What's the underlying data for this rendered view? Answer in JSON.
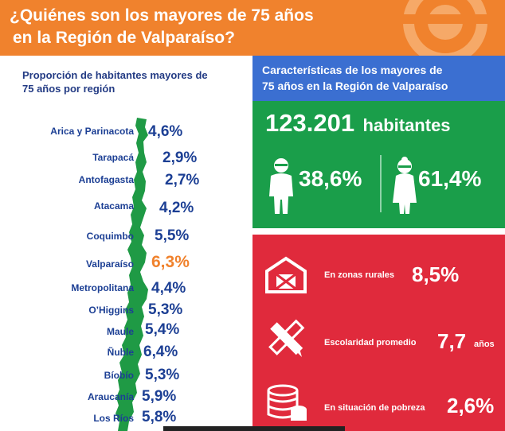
{
  "header": {
    "title_line1": "¿Quiénes son los mayores de 75 años",
    "title_line2": "en la Región de Valparaíso?"
  },
  "left": {
    "title_line1": "Proporción de habitantes mayores de",
    "title_line2": "75 años por región",
    "regions": [
      {
        "name": "Arica y Parinacota",
        "pct": "4,6%"
      },
      {
        "name": "Tarapacá",
        "pct": "2,9%"
      },
      {
        "name": "Antofagasta",
        "pct": "2,7%"
      },
      {
        "name": "Atacama",
        "pct": "4,2%"
      },
      {
        "name": "Coquimbo",
        "pct": "5,5%"
      },
      {
        "name": "Valparaíso",
        "pct": "6,3%"
      },
      {
        "name": "Metropolitana",
        "pct": "4,4%"
      },
      {
        "name": "O’Higgins",
        "pct": "5,3%"
      },
      {
        "name": "Maule",
        "pct": "5,4%"
      },
      {
        "name": "Ñuble",
        "pct": "6,4%"
      },
      {
        "name": "Bíobío",
        "pct": "5,3%"
      },
      {
        "name": "Araucanía",
        "pct": "5,9%"
      },
      {
        "name": "Los Ríos",
        "pct": "5,8%"
      }
    ]
  },
  "right": {
    "title_line1": "Características de los mayores de",
    "title_line2": "75 años en la Región de Valparaíso",
    "habitantes_number": "123.201",
    "habitantes_label": "habitantes",
    "male_pct": "38,6%",
    "female_pct": "61,4%",
    "stats": [
      {
        "label": "En zonas rurales",
        "value": "8,5%",
        "unit": "",
        "icon": "barn-icon"
      },
      {
        "label": "Escolaridad promedio",
        "value": "7,7",
        "unit": "años",
        "icon": "pencil-ruler-icon"
      },
      {
        "label": "En situación de pobreza",
        "value": "2,6%",
        "unit": "",
        "icon": "coins-icon"
      }
    ]
  },
  "colors": {
    "orange": "#f0822d",
    "navy": "#1c3f94",
    "blue_panel": "#3b6fd1",
    "green_panel": "#1a9e4a",
    "red_panel": "#e02a3c",
    "map_green": "#1f9a45"
  }
}
